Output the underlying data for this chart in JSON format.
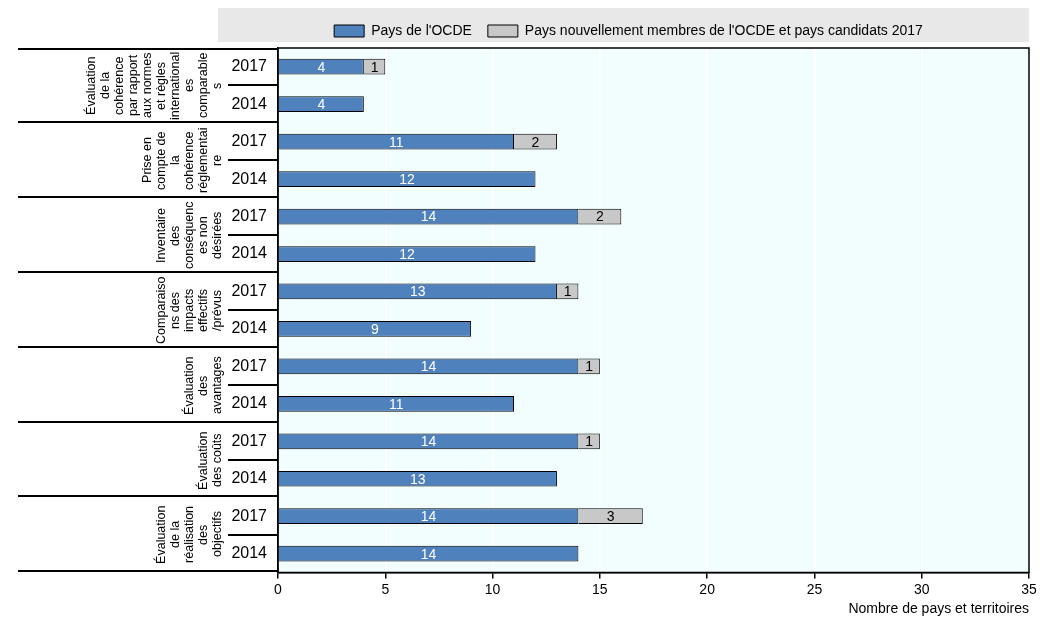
{
  "chart_data": {
    "type": "bar",
    "orientation": "horizontal",
    "stacked": true,
    "legend": "top",
    "grid": "x",
    "data_labels": true,
    "categories": [
      "2017",
      "2014",
      "2017",
      "2014",
      "2017",
      "2014",
      "2017",
      "2014",
      "2017",
      "2014",
      "2017",
      "2014",
      "2017",
      "2014"
    ],
    "series": [
      {
        "name": "Pays de l'OCDE",
        "color": "#4f81bd",
        "values": [
          4,
          4,
          11,
          12,
          14,
          12,
          13,
          9,
          14,
          11,
          14,
          13,
          14,
          14
        ]
      },
      {
        "name": "Pays nouvellement membres de l'OCDE et pays candidats 2017",
        "color": "#c8c8c8",
        "values": [
          1,
          null,
          2,
          null,
          2,
          null,
          1,
          null,
          1,
          null,
          1,
          null,
          3,
          null
        ]
      }
    ],
    "xlim": [
      0,
      35
    ],
    "xticks": [
      0,
      5,
      10,
      15,
      20,
      25,
      30,
      35
    ],
    "xlabel": "Nombre de pays et territoires",
    "annotations": [
      "Évaluation de la cohérence par rapport aux normes et règles internationales comparables",
      "Prise en compte de la cohérence réglementaire",
      "Inventaire des conséquences non désirées",
      "Comparaisons des impacts effectifs /prévus",
      "Évaluation des avantages",
      "Évaluation des coûts",
      "Évaluation de la réalisation des objectifs"
    ]
  }
}
